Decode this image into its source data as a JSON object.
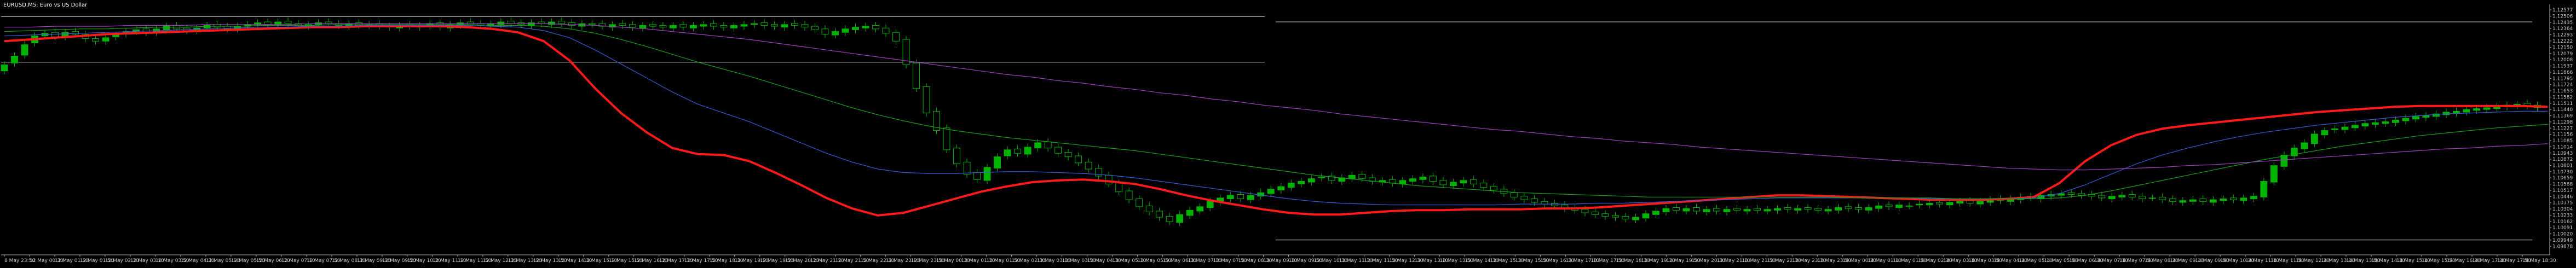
{
  "header": {
    "title": "EURUSD,M5: Euro vs US Dollar"
  },
  "colors": {
    "background": "#000000",
    "axis": "#b4b4b4",
    "bull_body": "#00b400",
    "bear_body": "#000000",
    "ema_fast": "#ff1a1a",
    "ema_blue": "#3a5bd8",
    "ema_green": "#1aa01a",
    "ema_violet": "#a040c0",
    "hline": "#c8c8c8"
  },
  "chart_data": {
    "type": "candlestick",
    "title": "EURUSD,M5: Euro vs US Dollar",
    "ylim": [
      1.0978,
      1.1264
    ],
    "y_ticks": [
      "1.12648",
      "1.12577",
      "1.12506",
      "1.12435",
      "1.12364",
      "1.12293",
      "1.12222",
      "1.12150",
      "1.12079",
      "1.12008",
      "1.11937",
      "1.11866",
      "1.11795",
      "1.11724",
      "1.11653",
      "1.11582",
      "1.11511",
      "1.11440",
      "1.11369",
      "1.11298",
      "1.11227",
      "1.11156",
      "1.11085",
      "1.11014",
      "1.10943",
      "1.10872",
      "1.10801",
      "1.10730",
      "1.10659",
      "1.10588",
      "1.10517",
      "1.10446",
      "1.10375",
      "1.10304",
      "1.10233",
      "1.10162",
      "1.10091",
      "1.10020",
      "1.09949",
      "1.09878"
    ],
    "x_ticks": [
      "8 May 23:50",
      "12 May 00:30",
      "12 May 01:10",
      "12 May 01:50",
      "12 May 02:30",
      "12 May 03:10",
      "12 May 03:50",
      "12 May 04:30",
      "12 May 05:10",
      "12 May 05:50",
      "12 May 06:30",
      "12 May 07:10",
      "12 May 07:50",
      "12 May 08:30",
      "12 May 09:10",
      "12 May 09:50",
      "12 May 10:30",
      "12 May 11:10",
      "12 May 11:50",
      "12 May 12:30",
      "12 May 13:10",
      "12 May 13:50",
      "12 May 14:30",
      "12 May 15:10",
      "12 May 15:50",
      "12 May 16:30",
      "12 May 17:10",
      "12 May 17:50",
      "12 May 18:30",
      "12 May 19:10",
      "12 May 19:50",
      "12 May 20:30",
      "12 May 21:10",
      "12 May 21:50",
      "12 May 22:30",
      "12 May 23:10",
      "12 May 23:50",
      "13 May 00:30",
      "13 May 01:10",
      "13 May 01:50",
      "13 May 02:30",
      "13 May 03:10",
      "13 May 03:50",
      "13 May 04:30",
      "13 May 05:10",
      "13 May 05:50",
      "13 May 06:30",
      "13 May 07:10",
      "13 May 07:50",
      "13 May 08:30",
      "13 May 09:10",
      "13 May 09:50",
      "13 May 10:30",
      "13 May 11:10",
      "13 May 11:50",
      "13 May 12:30",
      "13 May 13:10",
      "13 May 13:50",
      "13 May 14:30",
      "13 May 15:10",
      "13 May 15:50",
      "13 May 16:30",
      "13 May 17:10",
      "13 May 17:50",
      "13 May 18:30",
      "13 May 19:10",
      "13 May 19:50",
      "13 May 20:30",
      "13 May 21:10",
      "13 May 21:50",
      "13 May 22:30",
      "13 May 23:10",
      "13 May 23:50",
      "14 May 00:30",
      "14 May 01:10",
      "14 May 01:50",
      "14 May 02:30",
      "14 May 03:10",
      "14 May 03:50",
      "14 May 04:30",
      "14 May 05:10",
      "14 May 05:50",
      "14 May 06:30",
      "14 May 07:10",
      "14 May 07:50",
      "14 May 08:30",
      "14 May 09:10",
      "14 May 09:50",
      "14 May 10:30",
      "14 May 11:10",
      "14 May 11:50",
      "14 May 12:30",
      "14 May 13:10",
      "14 May 13:50",
      "14 May 14:30",
      "14 May 15:10",
      "14 May 15:50",
      "14 May 16:30",
      "14 May 17:10",
      "14 May 17:50",
      "14 May 18:30"
    ],
    "candles": {
      "x_start": 0,
      "x_step": 1,
      "closes": [
        1.1195,
        1.1205,
        1.1218,
        1.1228,
        1.1231,
        1.1227,
        1.1232,
        1.123,
        1.1225,
        1.1222,
        1.1226,
        1.1229,
        1.1233,
        1.1235,
        1.1232,
        1.1236,
        1.1239,
        1.1236,
        1.1234,
        1.1237,
        1.124,
        1.1238,
        1.1236,
        1.1239,
        1.1241,
        1.1243,
        1.1241,
        1.1244,
        1.1242,
        1.124,
        1.1241,
        1.1243,
        1.1242,
        1.124,
        1.1242,
        1.124,
        1.1241,
        1.1239,
        1.1238,
        1.124,
        1.1239,
        1.124,
        1.1242,
        1.1238,
        1.1241,
        1.1243,
        1.1241,
        1.124,
        1.1242,
        1.1244,
        1.1242,
        1.1241,
        1.1243,
        1.1242,
        1.1244,
        1.1242,
        1.124,
        1.1242,
        1.1241,
        1.1239,
        1.1241,
        1.124,
        1.1238,
        1.124,
        1.1239,
        1.1238,
        1.124,
        1.1238,
        1.124,
        1.1241,
        1.1239,
        1.1238,
        1.124,
        1.1241,
        1.1242,
        1.124,
        1.1239,
        1.1241,
        1.124,
        1.1238,
        1.1235,
        1.123,
        1.1233,
        1.1236,
        1.1238,
        1.1239,
        1.1236,
        1.1231,
        1.1222,
        1.1195,
        1.1168,
        1.114,
        1.112,
        1.1098,
        1.1082,
        1.107,
        1.1064,
        1.1078,
        1.109,
        1.1098,
        1.1094,
        1.1101,
        1.1106,
        1.11,
        1.1094,
        1.109,
        1.1083,
        1.1076,
        1.1068,
        1.1059,
        1.105,
        1.1041,
        1.1033,
        1.1027,
        1.1021,
        1.1016,
        1.1024,
        1.1029,
        1.1033,
        1.1039,
        1.1043,
        1.1046,
        1.1042,
        1.1046,
        1.1049,
        1.1053,
        1.1056,
        1.106,
        1.1062,
        1.1065,
        1.1067,
        1.1063,
        1.1066,
        1.1069,
        1.1065,
        1.1062,
        1.1063,
        1.106,
        1.1063,
        1.1065,
        1.1067,
        1.1062,
        1.1058,
        1.1061,
        1.1063,
        1.1059,
        1.1055,
        1.1052,
        1.1048,
        1.1044,
        1.1041,
        1.1038,
        1.1036,
        1.1034,
        1.1031,
        1.1029,
        1.1026,
        1.1024,
        1.1022,
        1.1021,
        1.1019,
        1.1021,
        1.1025,
        1.1028,
        1.1031,
        1.1029,
        1.1031,
        1.1028,
        1.103,
        1.1028,
        1.103,
        1.1029,
        1.103,
        1.1029,
        1.103,
        1.1031,
        1.103,
        1.1031,
        1.103,
        1.1029,
        1.103,
        1.1032,
        1.1031,
        1.103,
        1.1032,
        1.1034,
        1.1033,
        1.1035,
        1.1034,
        1.1036,
        1.1037,
        1.1036,
        1.1038,
        1.1039,
        1.1037,
        1.1039,
        1.1041,
        1.104,
        1.1042,
        1.1044,
        1.1043,
        1.1046,
        1.1047,
        1.1048,
        1.1047,
        1.1046,
        1.1045,
        1.1043,
        1.1045,
        1.1046,
        1.1044,
        1.1042,
        1.1043,
        1.1041,
        1.1039,
        1.104,
        1.1041,
        1.1039,
        1.1041,
        1.1042,
        1.1041,
        1.1043,
        1.1045,
        1.1062,
        1.108,
        1.1092,
        1.11,
        1.1106,
        1.1116,
        1.112,
        1.1122,
        1.1124,
        1.1126,
        1.1128,
        1.1129,
        1.113,
        1.1132,
        1.1134,
        1.1136,
        1.1137,
        1.1139,
        1.1141,
        1.1142,
        1.1144,
        1.1145,
        1.1146,
        1.1148,
        1.1149,
        1.115,
        1.1148,
        1.1146
      ],
      "opens": [
        1.1188,
        1.1197,
        1.1206,
        1.122,
        1.1228,
        1.1232,
        1.1227,
        1.1233,
        1.123,
        1.1225,
        1.1222,
        1.1227,
        1.123,
        1.1233,
        1.1236,
        1.1232,
        1.1235,
        1.124,
        1.1237,
        1.1234,
        1.1237,
        1.1241,
        1.1239,
        1.1236,
        1.1239,
        1.1241,
        1.1244,
        1.1241,
        1.1245,
        1.1242,
        1.1239,
        1.1241,
        1.1244,
        1.1242,
        1.1239,
        1.1243,
        1.124,
        1.1242,
        1.1239,
        1.1237,
        1.1241,
        1.1238,
        1.1239,
        1.1243,
        1.1237,
        1.124,
        1.1244,
        1.1242,
        1.1239,
        1.1241,
        1.1245,
        1.1243,
        1.124,
        1.1244,
        1.1241,
        1.1245,
        1.1243,
        1.1239,
        1.1242,
        1.1242,
        1.1238,
        1.1242,
        1.1241,
        1.1237,
        1.1241,
        1.124,
        1.1237,
        1.1241,
        1.1237,
        1.1239,
        1.1242,
        1.124,
        1.1237,
        1.1239,
        1.1241,
        1.1243,
        1.1241,
        1.1238,
        1.1242,
        1.1241,
        1.1239,
        1.1236,
        1.1229,
        1.1232,
        1.1235,
        1.1237,
        1.124,
        1.1237,
        1.1232,
        1.1224,
        1.1197,
        1.117,
        1.1142,
        1.1123,
        1.11,
        1.1084,
        1.1072,
        1.1063,
        1.1077,
        1.1091,
        1.1099,
        1.1093,
        1.11,
        1.1107,
        1.1101,
        1.1095,
        1.1091,
        1.1084,
        1.1077,
        1.1069,
        1.106,
        1.1051,
        1.1042,
        1.1034,
        1.1028,
        1.1022,
        1.1015,
        1.1023,
        1.1028,
        1.1032,
        1.1038,
        1.1042,
        1.1047,
        1.1041,
        1.1045,
        1.1048,
        1.1052,
        1.1055,
        1.1059,
        1.1061,
        1.1066,
        1.1068,
        1.1062,
        1.1065,
        1.107,
        1.1066,
        1.1061,
        1.1064,
        1.1059,
        1.1062,
        1.1064,
        1.1068,
        1.1063,
        1.1057,
        1.106,
        1.1064,
        1.106,
        1.1056,
        1.1053,
        1.1049,
        1.1045,
        1.1042,
        1.1039,
        1.1037,
        1.1035,
        1.1032,
        1.103,
        1.1027,
        1.1025,
        1.1023,
        1.1022,
        1.1018,
        1.102,
        1.1024,
        1.1027,
        1.1032,
        1.1028,
        1.1032,
        1.1027,
        1.1031,
        1.1027,
        1.1031,
        1.1028,
        1.1031,
        1.1028,
        1.1029,
        1.1032,
        1.1029,
        1.1032,
        1.1031,
        1.1028,
        1.1029,
        1.1033,
        1.1032,
        1.1029,
        1.1031,
        1.1035,
        1.1032,
        1.1034,
        1.1035,
        1.1035,
        1.1038,
        1.1035,
        1.1037,
        1.104,
        1.1036,
        1.1038,
        1.1042,
        1.1039,
        1.1041,
        1.1045,
        1.1042,
        1.1045,
        1.1046,
        1.1049,
        1.1048,
        1.1047,
        1.1046,
        1.1042,
        1.1044,
        1.1047,
        1.1045,
        1.1043,
        1.1044,
        1.1042,
        1.1038,
        1.1039,
        1.1042,
        1.1038,
        1.104,
        1.1043,
        1.104,
        1.1042,
        1.1044,
        1.1061,
        1.1079,
        1.1091,
        1.1099,
        1.1105,
        1.1115,
        1.1121,
        1.1121,
        1.1123,
        1.1125,
        1.1127,
        1.1128,
        1.1129,
        1.1131,
        1.1133,
        1.1135,
        1.1136,
        1.1138,
        1.114,
        1.1141,
        1.1143,
        1.1144,
        1.1145,
        1.1147,
        1.1148,
        1.1151,
        1.1149
      ]
    },
    "series": [
      {
        "name": "",
        "color_key": "ema_fast",
        "values": [
          1.1222,
          1.1224,
          1.1226,
          1.1228,
          1.123,
          1.1231,
          1.1232,
          1.1233,
          1.1234,
          1.1235,
          1.1236,
          1.1237,
          1.1238,
          1.1238,
          1.1239,
          1.1239,
          1.1239,
          1.1239,
          1.1238,
          1.1236,
          1.1232,
          1.1222,
          1.12,
          1.1168,
          1.114,
          1.1118,
          1.11,
          1.1093,
          1.1092,
          1.1085,
          1.1072,
          1.1058,
          1.1043,
          1.1031,
          1.1023,
          1.1026,
          1.1034,
          1.1042,
          1.105,
          1.1056,
          1.1061,
          1.1063,
          1.1064,
          1.1062,
          1.1059,
          1.1053,
          1.1046,
          1.104,
          1.1035,
          1.103,
          1.1026,
          1.1024,
          1.1024,
          1.1026,
          1.1028,
          1.1029,
          1.1029,
          1.103,
          1.103,
          1.103,
          1.1031,
          1.1031,
          1.1032,
          1.1034,
          1.1036,
          1.1038,
          1.104,
          1.1042,
          1.1044,
          1.1046,
          1.1046,
          1.1045,
          1.1044,
          1.1043,
          1.1042,
          1.1041,
          1.1041,
          1.1041,
          1.1042,
          1.1044,
          1.106,
          1.1085,
          1.1103,
          1.1115,
          1.1122,
          1.1126,
          1.1129,
          1.1132,
          1.1135,
          1.1138,
          1.1141,
          1.1143,
          1.1145,
          1.1147,
          1.1148,
          1.1148,
          1.1148,
          1.1148,
          1.1148,
          1.1147
        ]
      },
      {
        "name": "",
        "color_key": "ema_blue",
        "values": [
          1.1228,
          1.1229,
          1.123,
          1.1231,
          1.1232,
          1.1233,
          1.1234,
          1.1235,
          1.1236,
          1.1237,
          1.1238,
          1.1238,
          1.1239,
          1.1239,
          1.124,
          1.124,
          1.124,
          1.124,
          1.124,
          1.1239,
          1.1238,
          1.1234,
          1.1226,
          1.1212,
          1.1196,
          1.118,
          1.1164,
          1.115,
          1.114,
          1.113,
          1.1118,
          1.1106,
          1.1094,
          1.1084,
          1.1076,
          1.1072,
          1.1071,
          1.1071,
          1.1072,
          1.1073,
          1.1073,
          1.1072,
          1.1071,
          1.1069,
          1.1066,
          1.1062,
          1.1058,
          1.1054,
          1.105,
          1.1046,
          1.1042,
          1.1039,
          1.1037,
          1.1036,
          1.1035,
          1.1035,
          1.1035,
          1.1035,
          1.1035,
          1.1036,
          1.1036,
          1.1036,
          1.1037,
          1.1037,
          1.1038,
          1.1039,
          1.104,
          1.1041,
          1.1042,
          1.1043,
          1.1043,
          1.1043,
          1.1043,
          1.1043,
          1.1043,
          1.1042,
          1.1042,
          1.1042,
          1.1042,
          1.1043,
          1.1048,
          1.1058,
          1.107,
          1.1082,
          1.1092,
          1.11,
          1.1107,
          1.1113,
          1.1118,
          1.1122,
          1.1126,
          1.1129,
          1.1132,
          1.1135,
          1.1137,
          1.1139,
          1.114,
          1.1141,
          1.1142,
          1.1142
        ]
      },
      {
        "name": "",
        "color_key": "ema_green",
        "values": [
          1.1233,
          1.1234,
          1.1235,
          1.1236,
          1.1236,
          1.1237,
          1.1238,
          1.1238,
          1.1239,
          1.1239,
          1.124,
          1.124,
          1.124,
          1.1241,
          1.1241,
          1.1241,
          1.1241,
          1.1241,
          1.1241,
          1.124,
          1.124,
          1.1239,
          1.1236,
          1.1231,
          1.1224,
          1.1216,
          1.1207,
          1.1198,
          1.119,
          1.1182,
          1.1173,
          1.1164,
          1.1155,
          1.1146,
          1.1138,
          1.1131,
          1.1125,
          1.112,
          1.1116,
          1.1112,
          1.1109,
          1.1106,
          1.1103,
          1.11,
          1.1097,
          1.1093,
          1.1089,
          1.1085,
          1.1081,
          1.1077,
          1.1073,
          1.1069,
          1.1066,
          1.1063,
          1.106,
          1.1057,
          1.1055,
          1.1053,
          1.1051,
          1.1049,
          1.1048,
          1.1047,
          1.1046,
          1.1045,
          1.1044,
          1.1044,
          1.1044,
          1.1044,
          1.1044,
          1.1044,
          1.1044,
          1.1044,
          1.1043,
          1.1043,
          1.1043,
          1.1043,
          1.1042,
          1.1042,
          1.1042,
          1.1042,
          1.1043,
          1.1046,
          1.1051,
          1.1057,
          1.1063,
          1.1069,
          1.1075,
          1.1081,
          1.1087,
          1.1092,
          1.1097,
          1.1102,
          1.1106,
          1.111,
          1.1114,
          1.1117,
          1.112,
          1.1123,
          1.1125,
          1.1127
        ]
      },
      {
        "name": "",
        "color_key": "ema_violet",
        "values": [
          1.1238,
          1.1238,
          1.1239,
          1.1239,
          1.1239,
          1.124,
          1.124,
          1.124,
          1.1241,
          1.1241,
          1.1241,
          1.1241,
          1.1242,
          1.1242,
          1.1242,
          1.1242,
          1.1242,
          1.1242,
          1.1242,
          1.1242,
          1.1242,
          1.1242,
          1.1241,
          1.124,
          1.1238,
          1.1236,
          1.1233,
          1.123,
          1.1227,
          1.1224,
          1.122,
          1.1216,
          1.1212,
          1.1208,
          1.1204,
          1.12,
          1.1196,
          1.1192,
          1.1188,
          1.1184,
          1.1181,
          1.1177,
          1.1174,
          1.117,
          1.1167,
          1.1163,
          1.116,
          1.1156,
          1.1153,
          1.1149,
          1.1146,
          1.1143,
          1.1139,
          1.1136,
          1.1133,
          1.113,
          1.1127,
          1.1124,
          1.1121,
          1.1119,
          1.1116,
          1.1113,
          1.1111,
          1.1108,
          1.1106,
          1.1104,
          1.1101,
          1.1099,
          1.1097,
          1.1095,
          1.1093,
          1.1091,
          1.1089,
          1.1087,
          1.1085,
          1.1083,
          1.1081,
          1.1079,
          1.1077,
          1.1076,
          1.1075,
          1.1075,
          1.1076,
          1.1077,
          1.1078,
          1.108,
          1.1081,
          1.1083,
          1.1085,
          1.1087,
          1.1089,
          1.1091,
          1.1093,
          1.1095,
          1.1097,
          1.1099,
          1.11,
          1.1102,
          1.1103,
          1.1105
        ]
      }
    ],
    "hlines": [
      1.125,
      1.1198
    ],
    "hlines_right": [
      1.1244,
      1.0995
    ]
  }
}
